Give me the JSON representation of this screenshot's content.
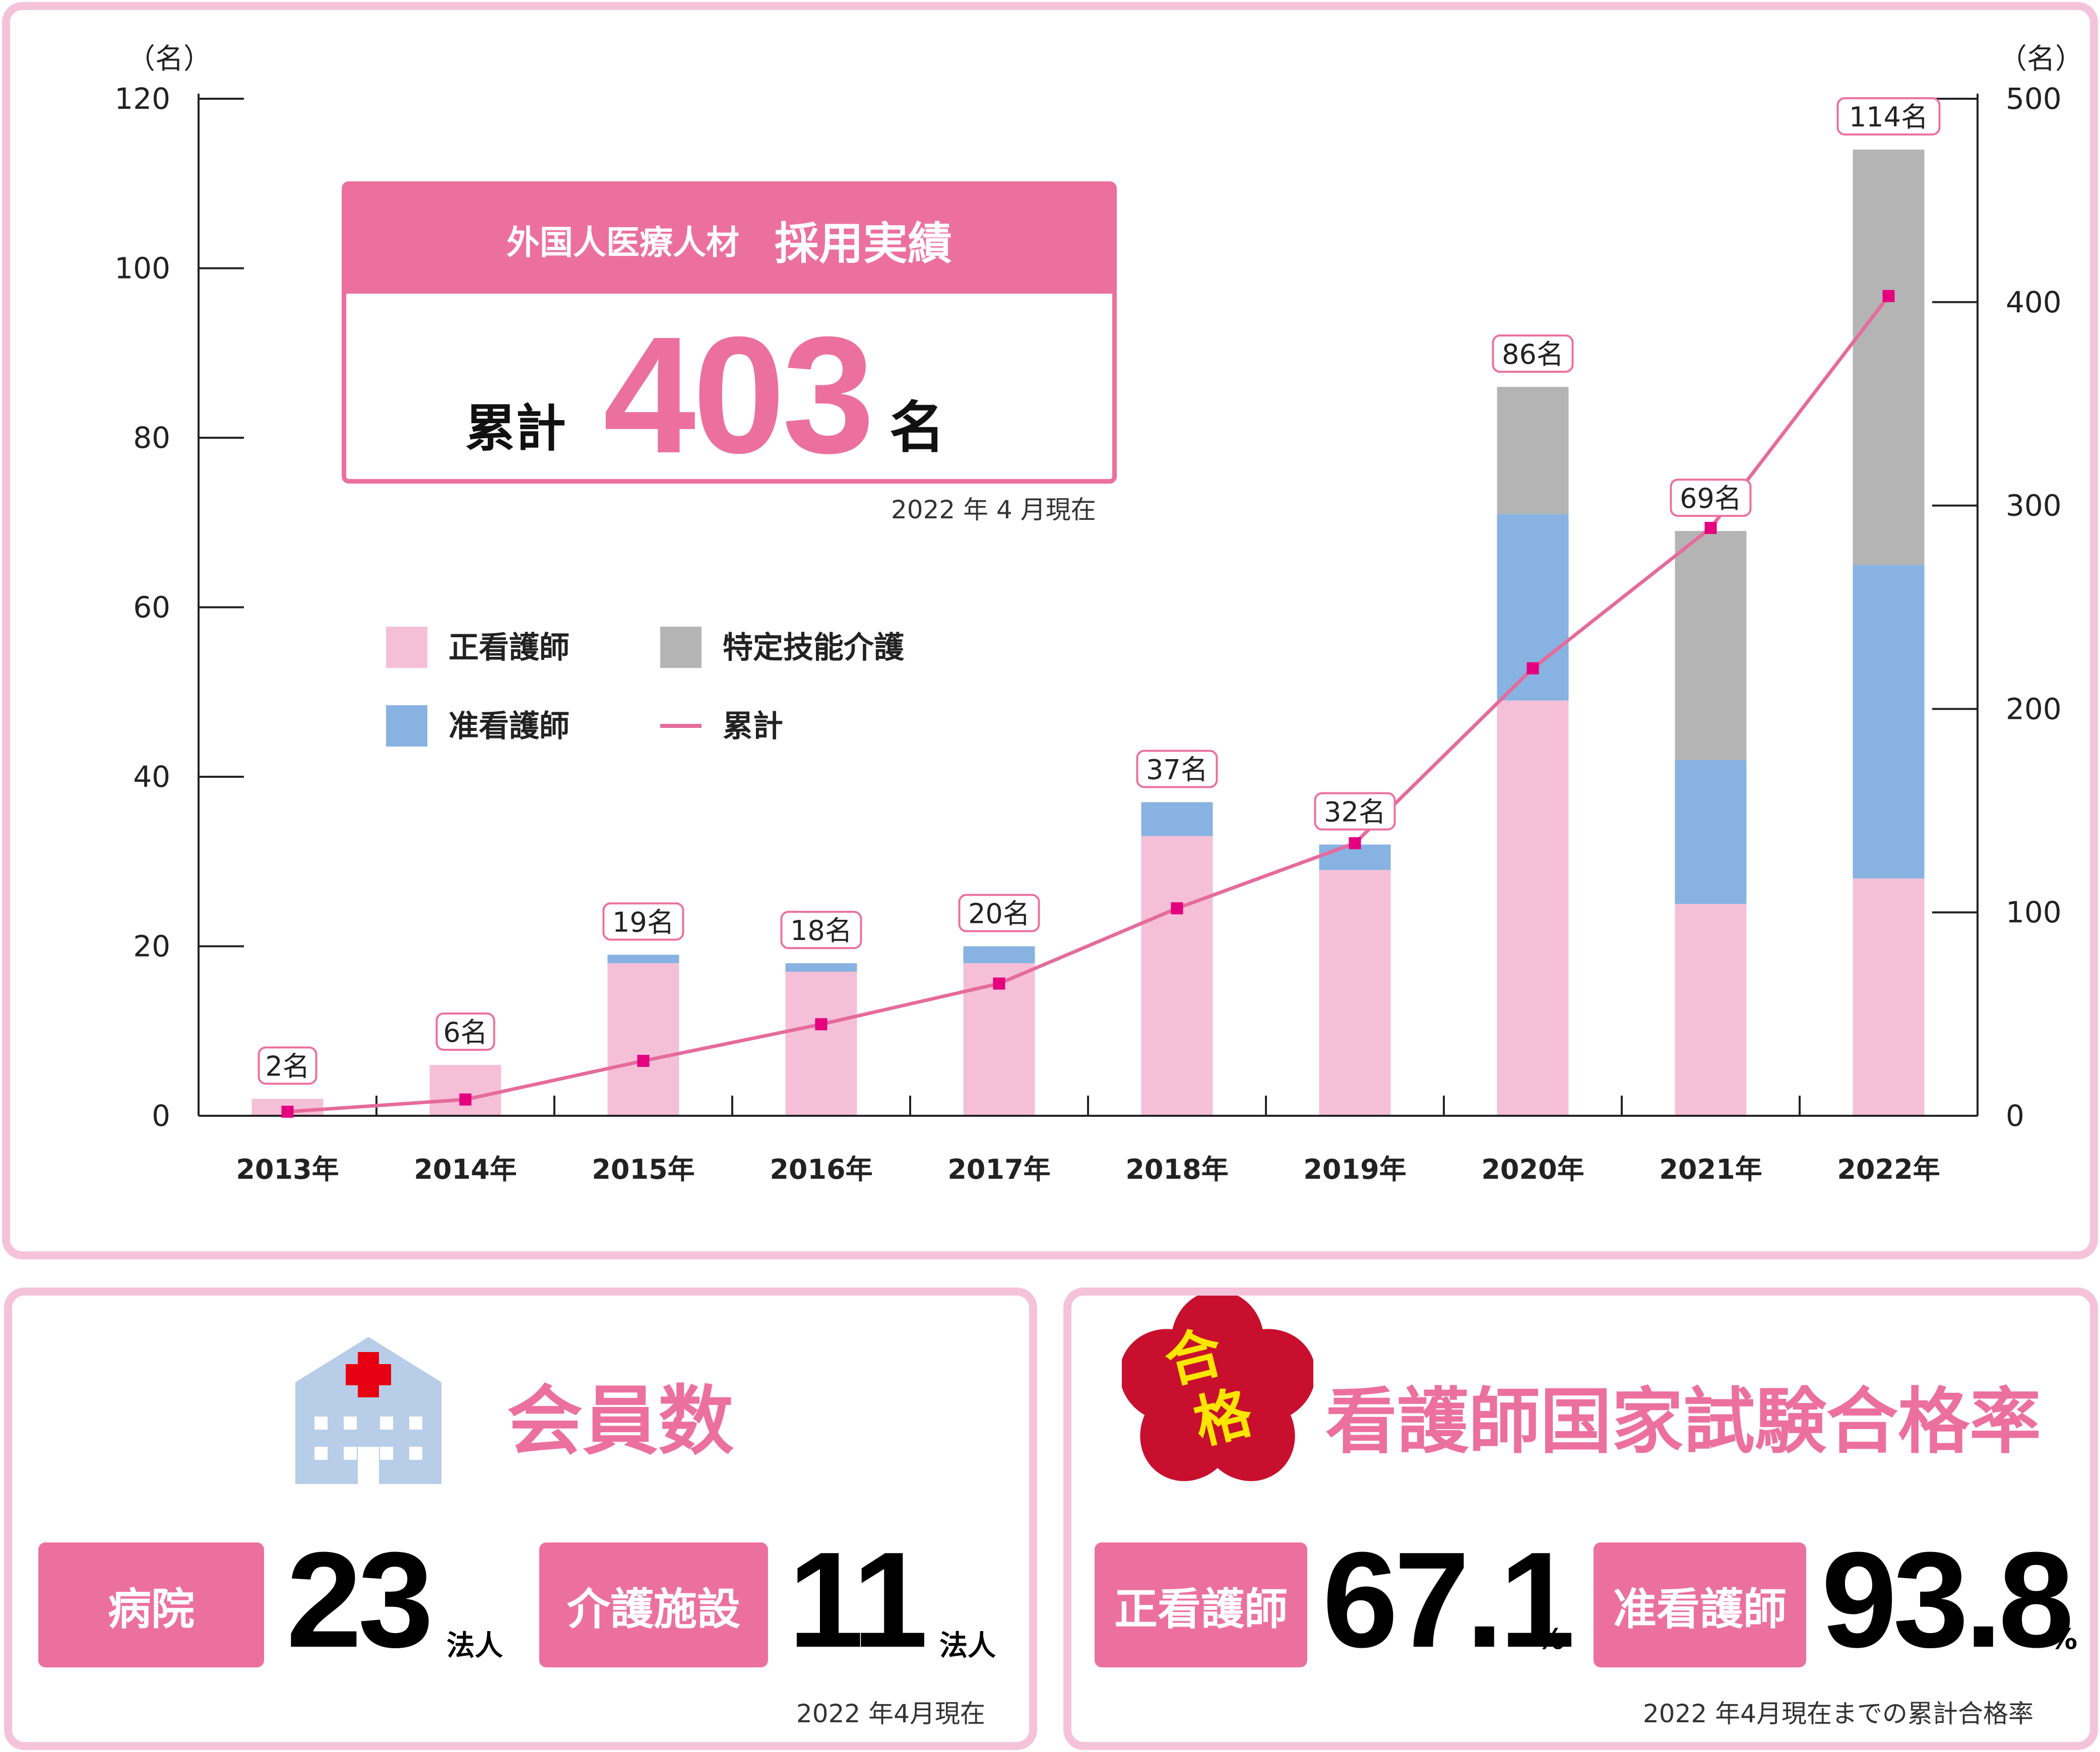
{
  "chart_data": {
    "type": "bar",
    "stacked": true,
    "categories": [
      "2013年",
      "2014年",
      "2015年",
      "2016年",
      "2017年",
      "2018年",
      "2019年",
      "2020年",
      "2021年",
      "2022年"
    ],
    "series": [
      {
        "name": "正看護師",
        "color": "#f5c0d7",
        "values": [
          2,
          6,
          18,
          17,
          18,
          33,
          29,
          49,
          25,
          28
        ]
      },
      {
        "name": "准看護師",
        "color": "#87b2e1",
        "values": [
          0,
          0,
          1,
          1,
          2,
          4,
          3,
          22,
          17,
          37
        ]
      },
      {
        "name": "特定技能介護",
        "color": "#b4b4b4",
        "values": [
          0,
          0,
          0,
          0,
          0,
          0,
          0,
          15,
          27,
          49
        ]
      }
    ],
    "totals_labels": [
      "2名",
      "6名",
      "19名",
      "18名",
      "20名",
      "37名",
      "32名",
      "86名",
      "69名",
      "114名"
    ],
    "line": {
      "name": "累計",
      "color": "#e56b9b",
      "axis": "right",
      "values": [
        2,
        8,
        27,
        45,
        65,
        102,
        134,
        220,
        289,
        403
      ]
    },
    "left_axis": {
      "unit": "（名）",
      "ylim": [
        0,
        120
      ],
      "ticks": [
        0,
        20,
        40,
        60,
        80,
        100,
        120
      ]
    },
    "right_axis": {
      "unit": "（名）",
      "ylim": [
        0,
        500
      ],
      "ticks": [
        0,
        100,
        200,
        300,
        400,
        500
      ]
    },
    "legend_placement": "upper-left",
    "grid": false
  },
  "summary_box": {
    "title_left": "外国人医療人材",
    "title_right": "採用実績",
    "prefix": "累計",
    "number": "403",
    "suffix": "名",
    "note": "2022 年 4 月現在"
  },
  "members": {
    "title": "会員数",
    "hospital_label": "病院",
    "hospital_count": "23",
    "hospital_unit": "法人",
    "care_label": "介護施設",
    "care_count": "11",
    "care_unit": "法人",
    "note": "2022 年4月現在"
  },
  "exam": {
    "badge": [
      "合",
      "格"
    ],
    "title": "看護師国家試験合格率",
    "rn_label": "正看護師",
    "rn_rate": "67.1",
    "rn_unit": "%",
    "lpn_label": "准看護師",
    "lpn_rate": "93.8",
    "lpn_unit": "%",
    "note": "2022 年4月現在までの累計合格率"
  },
  "colors": {
    "accent": "#ec709e",
    "panel_border": "#f5c3d9",
    "cross": "#e60012",
    "building": "#b7cde8",
    "sakura": "#c8102e",
    "badge_text": "#ffe600"
  }
}
